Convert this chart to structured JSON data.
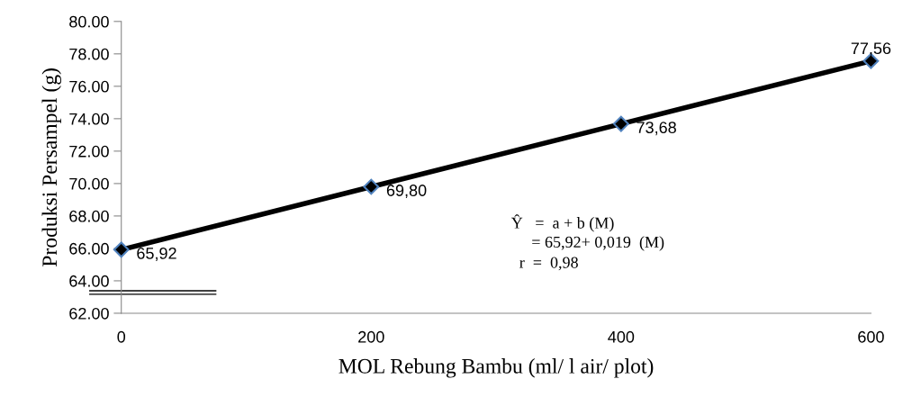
{
  "chart_data": {
    "type": "line",
    "xlabel": "MOL Rebung Bambu (ml/ l air/ plot)",
    "ylabel": "Produksi Persampel (g)",
    "x": [
      0,
      200,
      400,
      600
    ],
    "series": [
      {
        "color": "#000000",
        "values": [
          65.92,
          69.8,
          73.68,
          77.56
        ],
        "value_labels": [
          "65,92",
          "69,80",
          "73,68",
          "77,56"
        ]
      }
    ],
    "xlim": [
      0,
      600
    ],
    "xticks": [
      0,
      200,
      400,
      600
    ],
    "ylim": [
      62,
      80
    ],
    "yticks": [
      {
        "value": 62,
        "label": "62.00"
      },
      {
        "value": 64,
        "label": "64.00"
      },
      {
        "value": 66,
        "label": "66.00"
      },
      {
        "value": 68,
        "label": "68.00"
      },
      {
        "value": 70,
        "label": "70.00"
      },
      {
        "value": 72,
        "label": "72.00"
      },
      {
        "value": 74,
        "label": "74.00"
      },
      {
        "value": 76,
        "label": "76.00"
      },
      {
        "value": 78,
        "label": "78.00"
      },
      {
        "value": 80,
        "label": "80.00"
      }
    ],
    "marker": "diamond",
    "line_style": "solid",
    "grid": false,
    "legend": false,
    "annotations": [
      "Ŷ   =  a + b (M)",
      "     = 65,92+ 0,019  (M)",
      "  r  =  0,98"
    ]
  }
}
